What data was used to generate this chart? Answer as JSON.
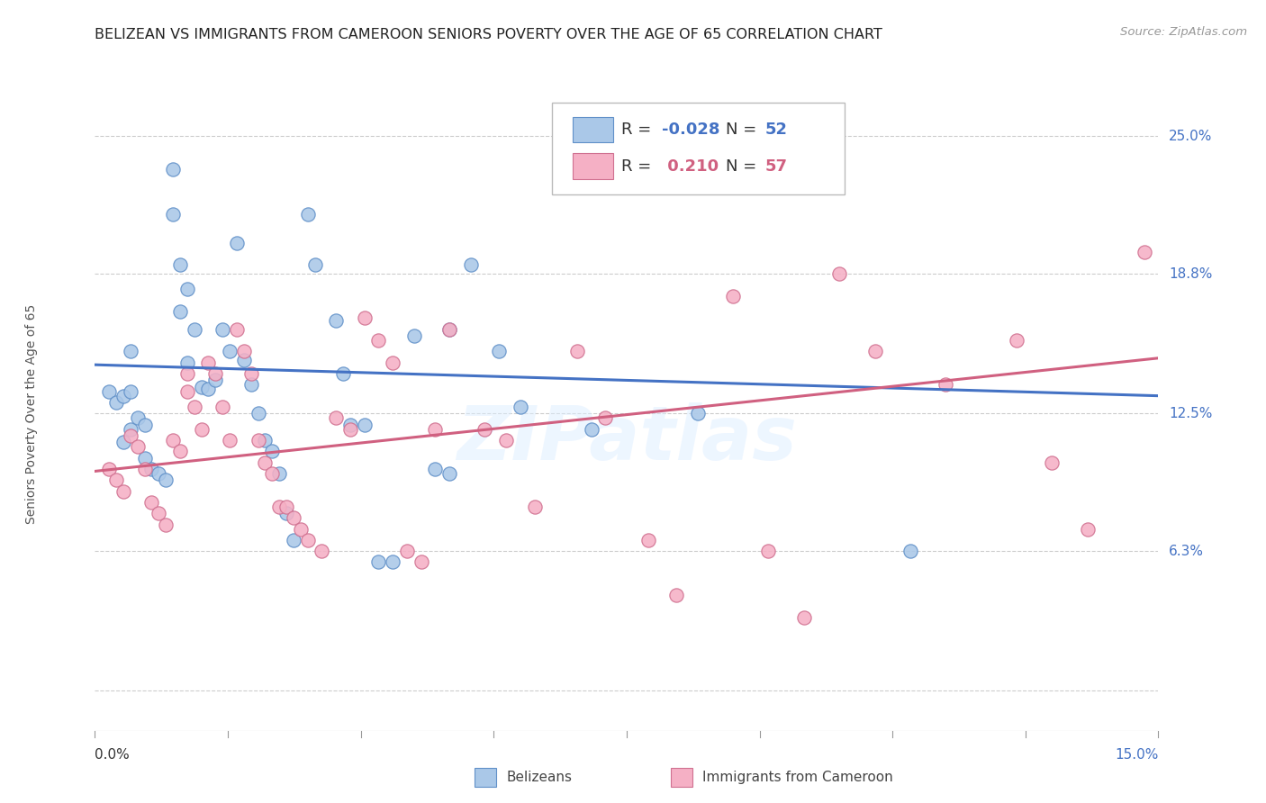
{
  "title": "BELIZEAN VS IMMIGRANTS FROM CAMEROON SENIORS POVERTY OVER THE AGE OF 65 CORRELATION CHART",
  "source": "Source: ZipAtlas.com",
  "ylabel": "Seniors Poverty Over the Age of 65",
  "ytick_positions": [
    0.0,
    0.063,
    0.125,
    0.188,
    0.25
  ],
  "ytick_labels": [
    "",
    "6.3%",
    "12.5%",
    "18.8%",
    "25.0%"
  ],
  "xlim": [
    0.0,
    0.15
  ],
  "ylim": [
    -0.018,
    0.268
  ],
  "blue_R": -0.028,
  "blue_N": 52,
  "pink_R": 0.21,
  "pink_N": 57,
  "blue_color": "#aac8e8",
  "pink_color": "#f5b0c5",
  "blue_edge_color": "#6090c8",
  "pink_edge_color": "#d07090",
  "blue_line_color": "#4472c4",
  "pink_line_color": "#d06080",
  "right_label_color": "#4472c4",
  "legend_label_blue": "Belizeans",
  "legend_label_pink": "Immigrants from Cameroon",
  "blue_trend_y": [
    0.147,
    0.133
  ],
  "pink_trend_y": [
    0.099,
    0.15
  ],
  "blue_x": [
    0.002,
    0.003,
    0.004,
    0.004,
    0.005,
    0.005,
    0.005,
    0.006,
    0.007,
    0.007,
    0.008,
    0.009,
    0.01,
    0.011,
    0.011,
    0.012,
    0.012,
    0.013,
    0.013,
    0.014,
    0.015,
    0.016,
    0.017,
    0.018,
    0.019,
    0.02,
    0.021,
    0.022,
    0.023,
    0.024,
    0.025,
    0.026,
    0.027,
    0.028,
    0.03,
    0.031,
    0.034,
    0.035,
    0.036,
    0.038,
    0.04,
    0.042,
    0.045,
    0.048,
    0.05,
    0.053,
    0.057,
    0.06,
    0.07,
    0.085,
    0.115,
    0.05
  ],
  "blue_y": [
    0.135,
    0.13,
    0.112,
    0.133,
    0.153,
    0.135,
    0.118,
    0.123,
    0.12,
    0.105,
    0.1,
    0.098,
    0.095,
    0.235,
    0.215,
    0.192,
    0.171,
    0.148,
    0.181,
    0.163,
    0.137,
    0.136,
    0.14,
    0.163,
    0.153,
    0.202,
    0.149,
    0.138,
    0.125,
    0.113,
    0.108,
    0.098,
    0.08,
    0.068,
    0.215,
    0.192,
    0.167,
    0.143,
    0.12,
    0.12,
    0.058,
    0.058,
    0.16,
    0.1,
    0.098,
    0.192,
    0.153,
    0.128,
    0.118,
    0.125,
    0.063,
    0.163
  ],
  "pink_x": [
    0.002,
    0.003,
    0.004,
    0.005,
    0.006,
    0.007,
    0.008,
    0.009,
    0.01,
    0.011,
    0.012,
    0.013,
    0.013,
    0.014,
    0.015,
    0.016,
    0.017,
    0.018,
    0.019,
    0.02,
    0.021,
    0.022,
    0.023,
    0.024,
    0.025,
    0.026,
    0.027,
    0.028,
    0.029,
    0.03,
    0.032,
    0.034,
    0.036,
    0.038,
    0.04,
    0.042,
    0.044,
    0.046,
    0.048,
    0.05,
    0.055,
    0.058,
    0.062,
    0.068,
    0.072,
    0.078,
    0.082,
    0.09,
    0.095,
    0.1,
    0.105,
    0.11,
    0.12,
    0.13,
    0.135,
    0.14,
    0.148
  ],
  "pink_y": [
    0.1,
    0.095,
    0.09,
    0.115,
    0.11,
    0.1,
    0.085,
    0.08,
    0.075,
    0.113,
    0.108,
    0.143,
    0.135,
    0.128,
    0.118,
    0.148,
    0.143,
    0.128,
    0.113,
    0.163,
    0.153,
    0.143,
    0.113,
    0.103,
    0.098,
    0.083,
    0.083,
    0.078,
    0.073,
    0.068,
    0.063,
    0.123,
    0.118,
    0.168,
    0.158,
    0.148,
    0.063,
    0.058,
    0.118,
    0.163,
    0.118,
    0.113,
    0.083,
    0.153,
    0.123,
    0.068,
    0.043,
    0.178,
    0.063,
    0.033,
    0.188,
    0.153,
    0.138,
    0.158,
    0.103,
    0.073,
    0.198
  ],
  "watermark": "ZIPatlas",
  "grid_color": "#cccccc",
  "background_color": "#ffffff",
  "title_fontsize": 11.5,
  "source_fontsize": 9.5,
  "axis_label_fontsize": 10,
  "tick_fontsize": 11,
  "legend_fontsize": 13,
  "marker_size": 120
}
